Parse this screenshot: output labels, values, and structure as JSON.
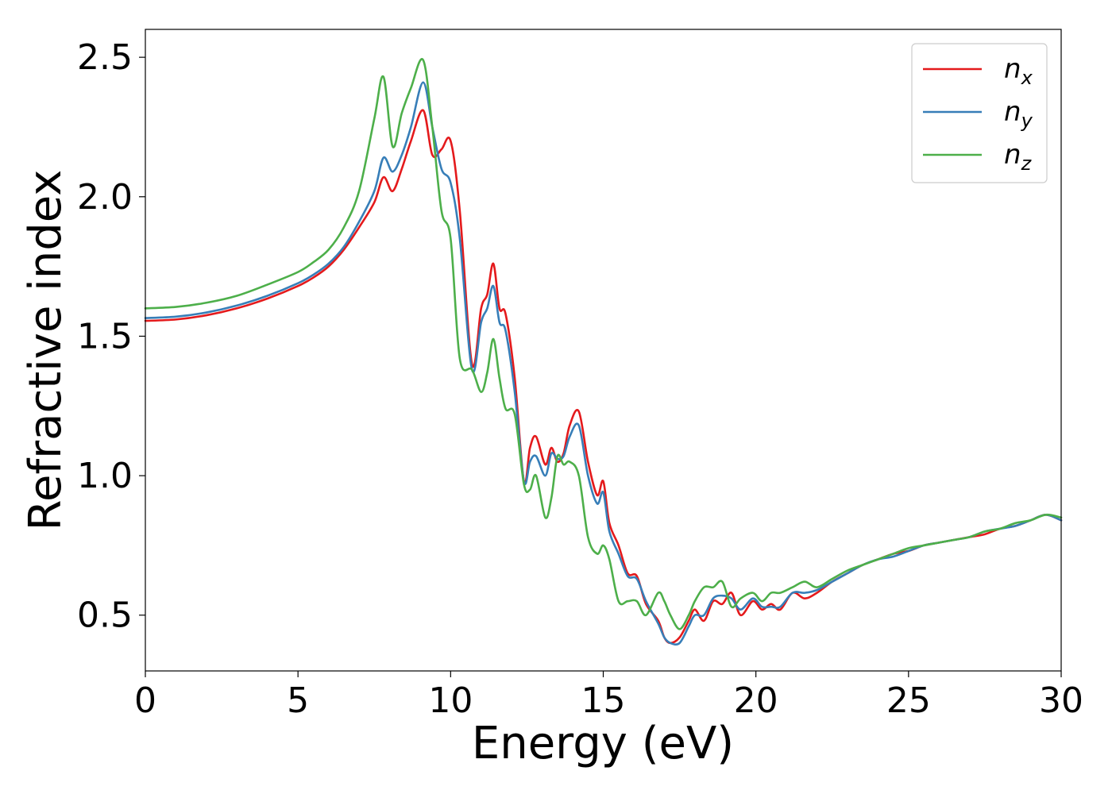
{
  "chart_data": {
    "type": "line",
    "title": "",
    "xlabel": "Energy (eV)",
    "ylabel": "Refractive index",
    "xlim": [
      0,
      30
    ],
    "ylim": [
      0.3,
      2.6
    ],
    "xticks": [
      0,
      5,
      10,
      15,
      20,
      25,
      30
    ],
    "xtick_labels": [
      "0",
      "5",
      "10",
      "15",
      "20",
      "25",
      "30"
    ],
    "yticks": [
      0.5,
      1.0,
      1.5,
      2.0,
      2.5
    ],
    "ytick_labels": [
      "0.5",
      "1.0",
      "1.5",
      "2.0",
      "2.5"
    ],
    "grid": false,
    "legend_position": "top-right",
    "series": [
      {
        "name": "n_x",
        "legend_base": "n",
        "legend_sub": "x",
        "color": "#e41a1c",
        "x": [
          0,
          1,
          2,
          3,
          4,
          5,
          5.5,
          6,
          6.5,
          7,
          7.5,
          7.8,
          8.1,
          8.4,
          8.7,
          9.1,
          9.4,
          9.7,
          10.0,
          10.3,
          10.7,
          11.0,
          11.2,
          11.4,
          11.6,
          11.8,
          12.1,
          12.4,
          12.6,
          12.8,
          13.1,
          13.3,
          13.5,
          13.7,
          13.9,
          14.2,
          14.5,
          14.8,
          15.0,
          15.2,
          15.5,
          15.8,
          16.1,
          16.4,
          16.8,
          17.0,
          17.2,
          17.5,
          17.8,
          18.0,
          18.3,
          18.6,
          18.9,
          19.2,
          19.5,
          19.9,
          20.2,
          20.5,
          20.8,
          21.2,
          21.6,
          22.0,
          22.5,
          23.0,
          23.5,
          24.0,
          24.5,
          25.0,
          25.5,
          26.0,
          26.5,
          27.0,
          27.5,
          28.0,
          28.5,
          29.0,
          29.5,
          30.0
        ],
        "y": [
          1.555,
          1.56,
          1.575,
          1.6,
          1.635,
          1.68,
          1.71,
          1.75,
          1.81,
          1.89,
          1.98,
          2.07,
          2.02,
          2.1,
          2.2,
          2.31,
          2.15,
          2.17,
          2.2,
          1.95,
          1.4,
          1.6,
          1.65,
          1.76,
          1.6,
          1.58,
          1.35,
          0.98,
          1.1,
          1.14,
          1.04,
          1.1,
          1.05,
          1.08,
          1.18,
          1.23,
          1.05,
          0.93,
          0.98,
          0.83,
          0.75,
          0.65,
          0.64,
          0.54,
          0.48,
          0.42,
          0.4,
          0.42,
          0.48,
          0.52,
          0.48,
          0.55,
          0.54,
          0.58,
          0.5,
          0.55,
          0.52,
          0.54,
          0.52,
          0.58,
          0.56,
          0.58,
          0.62,
          0.65,
          0.68,
          0.7,
          0.72,
          0.73,
          0.75,
          0.76,
          0.77,
          0.78,
          0.79,
          0.81,
          0.82,
          0.84,
          0.86,
          0.84
        ]
      },
      {
        "name": "n_y",
        "legend_base": "n",
        "legend_sub": "y",
        "color": "#377eb8",
        "x": [
          0,
          1,
          2,
          3,
          4,
          5,
          5.5,
          6,
          6.5,
          7,
          7.5,
          7.8,
          8.1,
          8.4,
          8.7,
          9.1,
          9.4,
          9.7,
          10.0,
          10.3,
          10.7,
          11.0,
          11.2,
          11.4,
          11.6,
          11.8,
          12.1,
          12.4,
          12.6,
          12.8,
          13.1,
          13.3,
          13.5,
          13.7,
          13.9,
          14.2,
          14.5,
          14.8,
          15.0,
          15.2,
          15.5,
          15.8,
          16.1,
          16.4,
          16.8,
          17.0,
          17.2,
          17.5,
          17.8,
          18.0,
          18.3,
          18.6,
          18.9,
          19.2,
          19.5,
          19.9,
          20.2,
          20.5,
          20.8,
          21.2,
          21.6,
          22.0,
          22.5,
          23.0,
          23.5,
          24.0,
          24.5,
          25.0,
          25.5,
          26.0,
          26.5,
          27.0,
          27.5,
          28.0,
          28.5,
          29.0,
          29.5,
          30.0
        ],
        "y": [
          1.565,
          1.57,
          1.585,
          1.61,
          1.645,
          1.69,
          1.72,
          1.76,
          1.82,
          1.91,
          2.02,
          2.14,
          2.09,
          2.15,
          2.25,
          2.41,
          2.25,
          2.1,
          2.05,
          1.85,
          1.38,
          1.55,
          1.6,
          1.68,
          1.55,
          1.52,
          1.3,
          0.98,
          1.05,
          1.07,
          1.0,
          1.08,
          1.06,
          1.07,
          1.14,
          1.18,
          1.0,
          0.9,
          0.94,
          0.8,
          0.72,
          0.64,
          0.63,
          0.55,
          0.47,
          0.42,
          0.4,
          0.4,
          0.46,
          0.5,
          0.5,
          0.56,
          0.57,
          0.56,
          0.52,
          0.56,
          0.53,
          0.53,
          0.53,
          0.58,
          0.58,
          0.59,
          0.62,
          0.65,
          0.68,
          0.7,
          0.71,
          0.73,
          0.75,
          0.76,
          0.77,
          0.78,
          0.8,
          0.81,
          0.82,
          0.84,
          0.86,
          0.84
        ]
      },
      {
        "name": "n_z",
        "legend_base": "n",
        "legend_sub": "z",
        "color": "#4daf4a",
        "x": [
          0,
          1,
          2,
          3,
          4,
          5,
          5.5,
          6,
          6.5,
          7,
          7.5,
          7.8,
          8.1,
          8.4,
          8.7,
          9.1,
          9.4,
          9.7,
          10.0,
          10.3,
          10.7,
          11.0,
          11.2,
          11.4,
          11.6,
          11.8,
          12.1,
          12.4,
          12.6,
          12.8,
          13.1,
          13.3,
          13.5,
          13.7,
          13.9,
          14.2,
          14.5,
          14.8,
          15.0,
          15.2,
          15.5,
          15.8,
          16.1,
          16.4,
          16.8,
          17.0,
          17.2,
          17.5,
          17.8,
          18.0,
          18.3,
          18.6,
          18.9,
          19.2,
          19.5,
          19.9,
          20.2,
          20.5,
          20.8,
          21.2,
          21.6,
          22.0,
          22.5,
          23.0,
          23.5,
          24.0,
          24.5,
          25.0,
          25.5,
          26.0,
          26.5,
          27.0,
          27.5,
          28.0,
          28.5,
          29.0,
          29.5,
          30.0
        ],
        "y": [
          1.6,
          1.605,
          1.62,
          1.645,
          1.685,
          1.73,
          1.765,
          1.81,
          1.89,
          2.02,
          2.28,
          2.43,
          2.18,
          2.3,
          2.39,
          2.49,
          2.25,
          1.95,
          1.85,
          1.42,
          1.38,
          1.3,
          1.37,
          1.49,
          1.35,
          1.24,
          1.22,
          0.97,
          0.95,
          1.0,
          0.85,
          0.92,
          1.07,
          1.04,
          1.05,
          1.0,
          0.78,
          0.72,
          0.75,
          0.7,
          0.55,
          0.55,
          0.55,
          0.5,
          0.58,
          0.55,
          0.5,
          0.45,
          0.5,
          0.55,
          0.6,
          0.6,
          0.62,
          0.53,
          0.56,
          0.58,
          0.55,
          0.58,
          0.58,
          0.6,
          0.62,
          0.6,
          0.63,
          0.66,
          0.68,
          0.7,
          0.72,
          0.74,
          0.75,
          0.76,
          0.77,
          0.78,
          0.8,
          0.81,
          0.83,
          0.84,
          0.86,
          0.85
        ]
      }
    ]
  }
}
